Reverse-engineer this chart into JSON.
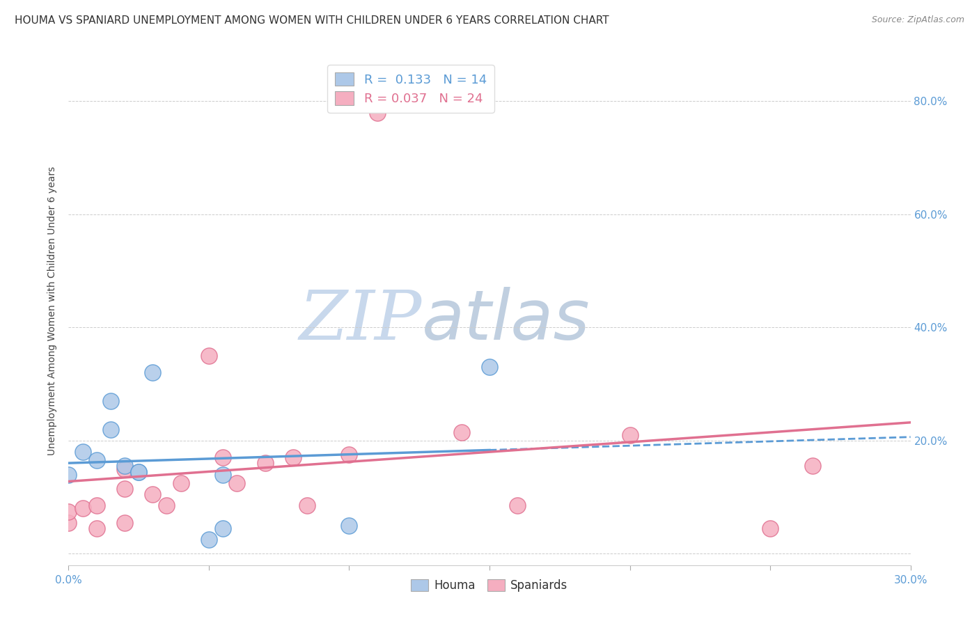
{
  "title": "HOUMA VS SPANIARD UNEMPLOYMENT AMONG WOMEN WITH CHILDREN UNDER 6 YEARS CORRELATION CHART",
  "source": "Source: ZipAtlas.com",
  "ylabel": "Unemployment Among Women with Children Under 6 years",
  "xlim": [
    0.0,
    0.3
  ],
  "ylim": [
    -0.02,
    0.88
  ],
  "xticks": [
    0.0,
    0.05,
    0.1,
    0.15,
    0.2,
    0.25,
    0.3
  ],
  "yticks": [
    0.0,
    0.2,
    0.4,
    0.6,
    0.8
  ],
  "ytick_labels": [
    "",
    "20.0%",
    "40.0%",
    "60.0%",
    "80.0%"
  ],
  "xtick_labels": [
    "0.0%",
    "",
    "",
    "",
    "",
    "",
    "30.0%"
  ],
  "houma_R": "0.133",
  "houma_N": "14",
  "spaniard_R": "0.037",
  "spaniard_N": "24",
  "houma_color": "#adc8e8",
  "spaniard_color": "#f5aec0",
  "houma_line_color": "#5b9bd5",
  "spaniard_line_color": "#e07090",
  "legend_label_houma": "Houma",
  "legend_label_spaniard": "Spaniards",
  "houma_x": [
    0.0,
    0.005,
    0.01,
    0.015,
    0.015,
    0.02,
    0.025,
    0.025,
    0.03,
    0.05,
    0.055,
    0.055,
    0.1,
    0.15
  ],
  "houma_y": [
    0.14,
    0.18,
    0.165,
    0.27,
    0.22,
    0.155,
    0.145,
    0.145,
    0.32,
    0.025,
    0.045,
    0.14,
    0.05,
    0.33
  ],
  "spaniard_x": [
    0.0,
    0.0,
    0.005,
    0.01,
    0.01,
    0.02,
    0.02,
    0.02,
    0.03,
    0.035,
    0.04,
    0.05,
    0.055,
    0.06,
    0.07,
    0.08,
    0.085,
    0.1,
    0.11,
    0.14,
    0.16,
    0.2,
    0.25,
    0.265
  ],
  "spaniard_y": [
    0.055,
    0.075,
    0.08,
    0.045,
    0.085,
    0.115,
    0.15,
    0.055,
    0.105,
    0.085,
    0.125,
    0.35,
    0.17,
    0.125,
    0.16,
    0.17,
    0.085,
    0.175,
    0.78,
    0.215,
    0.085,
    0.21,
    0.045,
    0.155
  ],
  "background_color": "#ffffff",
  "grid_color": "#cccccc",
  "title_fontsize": 11,
  "axis_label_fontsize": 10,
  "tick_fontsize": 11,
  "watermark_zip": "ZIP",
  "watermark_atlas": "atlas",
  "watermark_zip_color": "#c8d8ec",
  "watermark_atlas_color": "#c0cfe0",
  "right_ytick_color": "#5b9bd5"
}
